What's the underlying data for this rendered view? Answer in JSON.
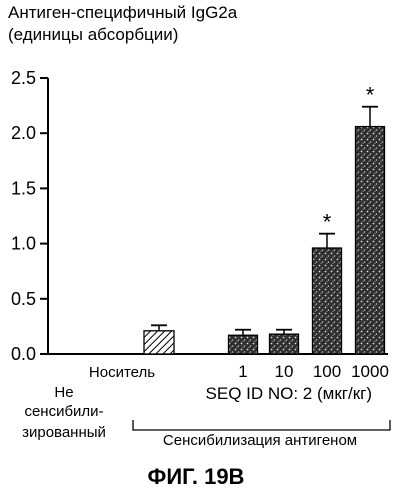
{
  "chart_data": {
    "type": "bar",
    "ylabel_lines": [
      "Антиген-специфичный IgG2a",
      "(единицы абсорбции)"
    ],
    "yticks": [
      "0.0",
      "0.5",
      "1.0",
      "1.5",
      "2.0",
      "2.5"
    ],
    "ylim": [
      0,
      2.5
    ],
    "categories": [
      "Носитель",
      "1",
      "10",
      "100",
      "1000"
    ],
    "values": [
      0.21,
      0.17,
      0.18,
      0.96,
      2.06
    ],
    "errors": [
      0.05,
      0.05,
      0.04,
      0.13,
      0.18
    ],
    "significant": [
      "",
      "",
      "",
      "*",
      "*"
    ],
    "dose_label": "SEQ ID NO: 2 (мкг/кг)",
    "nonsensitized_label": [
      "Не",
      "сенсибили-",
      "зированный"
    ],
    "group_label": "Сенсибилизация антигеном",
    "bar_styles": [
      "hatched",
      "stipple",
      "stipple",
      "stipple",
      "stipple"
    ],
    "grid": false,
    "legend": "none"
  },
  "caption": "ФИГ. 19В"
}
